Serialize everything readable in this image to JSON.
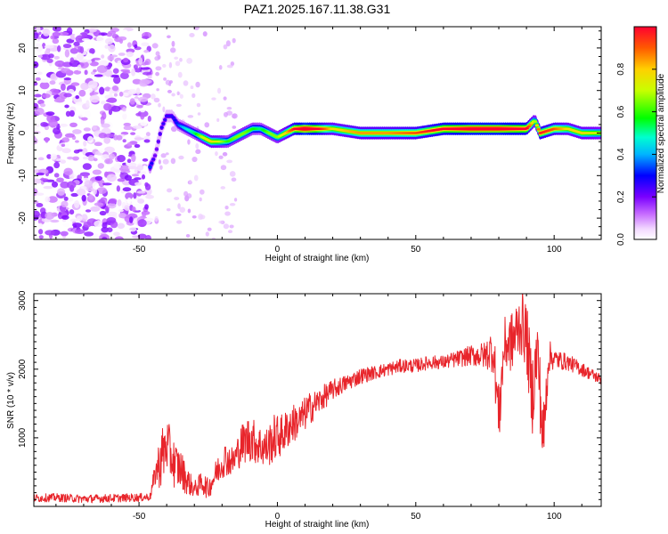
{
  "figure": {
    "title": "PAZ1.2025.167.11.38.G31"
  },
  "chart_data": [
    {
      "type": "heatmap",
      "xlabel": "Height of straight line (km)",
      "ylabel": "Frequency (Hz)",
      "xlim": [
        -88,
        117
      ],
      "ylim": [
        -25,
        25
      ],
      "xticks": [
        -50,
        0,
        50,
        100
      ],
      "yticks": [
        -20,
        -10,
        0,
        10,
        20
      ],
      "colorbar": {
        "label": "Normalized spectral amplitude",
        "range": [
          0,
          1
        ],
        "ticks": [
          "0.0",
          "0.2",
          "0.4",
          "0.6",
          "0.8"
        ],
        "colormap": "rainbow (white-magenta-blue-cyan-green-yellow-red)"
      },
      "ridge": {
        "description": "frequency (Hz) of dominant signal vs height (km)",
        "x": [
          -46,
          -44,
          -42,
          -40,
          -38,
          -36,
          -33,
          -30,
          -27,
          -24,
          -21,
          -18,
          -15,
          -12,
          -9,
          -6,
          -3,
          0,
          3,
          6,
          10,
          20,
          30,
          40,
          50,
          60,
          70,
          80,
          85,
          90,
          93,
          95,
          100,
          105,
          110,
          117
        ],
        "y": [
          -8,
          -5,
          1,
          4,
          4,
          2,
          1,
          0,
          -1,
          -2,
          -2,
          -2,
          -1,
          0,
          1,
          1,
          0,
          -1,
          0,
          1,
          1,
          1,
          0,
          0,
          0,
          1,
          1,
          1,
          1,
          1,
          3,
          0,
          1,
          1,
          0,
          0
        ],
        "amplitude": [
          0.25,
          0.15,
          0.2,
          0.2,
          0.2,
          0.25,
          0.35,
          0.4,
          0.55,
          0.6,
          0.55,
          0.45,
          0.5,
          0.5,
          0.45,
          0.4,
          0.5,
          0.5,
          0.6,
          0.75,
          0.95,
          0.6,
          0.65,
          0.65,
          0.7,
          0.8,
          0.9,
          0.9,
          0.85,
          0.8,
          0.5,
          0.75,
          0.7,
          0.6,
          0.6,
          0.55
        ]
      },
      "noise_region": {
        "x_range": [
          -88,
          -46
        ],
        "amplitude_range": [
          0.0,
          0.2
        ]
      }
    },
    {
      "type": "line",
      "xlabel": "Height of straight line (km)",
      "ylabel": "SNR (10 * v/v)",
      "xlim": [
        -88,
        117
      ],
      "ylim": [
        0,
        3100
      ],
      "xticks": [
        -50,
        0,
        50,
        100
      ],
      "yticks": [
        1000,
        2000,
        3000
      ],
      "series": [
        {
          "color": "#e8252b",
          "x": [
            -88,
            -80,
            -70,
            -60,
            -50,
            -46,
            -44,
            -42,
            -40,
            -37,
            -35,
            -33,
            -30,
            -27,
            -25,
            -22,
            -19,
            -16,
            -13,
            -10,
            -7,
            -4,
            -1,
            2,
            5,
            8,
            11,
            14,
            17,
            20,
            25,
            30,
            35,
            40,
            45,
            50,
            55,
            60,
            65,
            70,
            75,
            78,
            80,
            82,
            85,
            88,
            90,
            92,
            94,
            96,
            98,
            100,
            105,
            110,
            117
          ],
          "y": [
            120,
            130,
            110,
            120,
            130,
            140,
            500,
            700,
            900,
            600,
            550,
            400,
            250,
            350,
            250,
            500,
            700,
            650,
            900,
            1000,
            900,
            850,
            1000,
            1050,
            1200,
            1250,
            1400,
            1500,
            1600,
            1700,
            1800,
            1900,
            1950,
            2000,
            2050,
            2050,
            2100,
            2100,
            2150,
            2200,
            2200,
            2300,
            1300,
            2350,
            2400,
            2700,
            2500,
            1600,
            2300,
            900,
            2200,
            2150,
            2100,
            2000,
            1850
          ],
          "noise_amplitude": [
            60,
            60,
            60,
            60,
            60,
            60,
            200,
            450,
            400,
            350,
            300,
            220,
            120,
            180,
            150,
            200,
            250,
            220,
            300,
            350,
            300,
            300,
            350,
            300,
            300,
            250,
            250,
            200,
            180,
            150,
            120,
            120,
            100,
            100,
            100,
            100,
            100,
            100,
            120,
            150,
            200,
            350,
            500,
            400,
            450,
            500,
            500,
            600,
            500,
            600,
            250,
            150,
            120,
            100,
            80
          ]
        }
      ]
    }
  ]
}
